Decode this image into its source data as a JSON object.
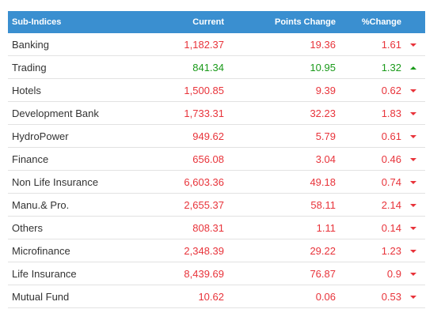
{
  "table": {
    "header": [
      "Sub-Indices",
      "Current",
      "Points Change",
      "%Change"
    ],
    "rows": [
      {
        "cells": [
          "Banking",
          "1,182.37",
          "19.36",
          "1.61"
        ],
        "trend": "down"
      },
      {
        "cells": [
          "Trading",
          "841.34",
          "10.95",
          "1.32"
        ],
        "trend": "up"
      },
      {
        "cells": [
          "Hotels",
          "1,500.85",
          "9.39",
          "0.62"
        ],
        "trend": "down"
      },
      {
        "cells": [
          "Development Bank",
          "1,733.31",
          "32.23",
          "1.83"
        ],
        "trend": "down"
      },
      {
        "cells": [
          "HydroPower",
          "949.62",
          "5.79",
          "0.61"
        ],
        "trend": "down"
      },
      {
        "cells": [
          "Finance",
          "656.08",
          "3.04",
          "0.46"
        ],
        "trend": "down"
      },
      {
        "cells": [
          "Non Life Insurance",
          "6,603.36",
          "49.18",
          "0.74"
        ],
        "trend": "down"
      },
      {
        "cells": [
          "Manu.& Pro.",
          "2,655.37",
          "58.11",
          "2.14"
        ],
        "trend": "down"
      },
      {
        "cells": [
          "Others",
          "808.31",
          "1.11",
          "0.14"
        ],
        "trend": "down"
      },
      {
        "cells": [
          "Microfinance",
          "2,348.39",
          "29.22",
          "1.23"
        ],
        "trend": "down"
      },
      {
        "cells": [
          "Life Insurance",
          "8,439.69",
          "76.87",
          "0.9"
        ],
        "trend": "down"
      },
      {
        "cells": [
          "Mutual Fund",
          "10.62",
          "0.06",
          "0.53"
        ],
        "trend": "down"
      }
    ]
  }
}
